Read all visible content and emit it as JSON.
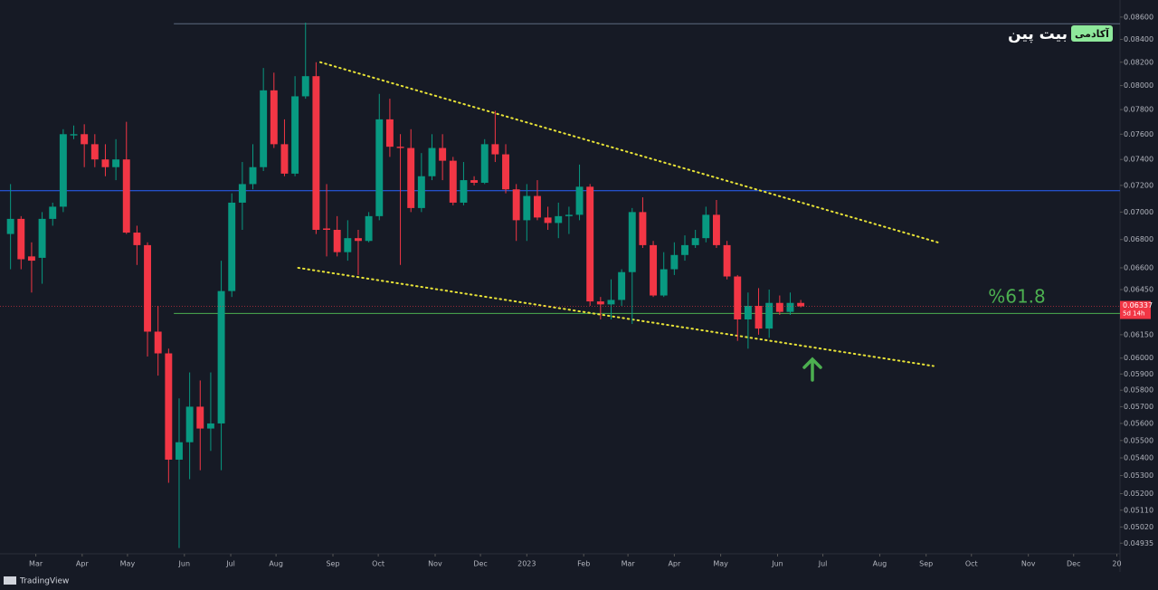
{
  "chart_data": {
    "type": "candlestick",
    "up_color": "#089981",
    "down_color": "#f23645",
    "open": [
      0.0684,
      0.0695,
      0.0668,
      0.0667,
      0.0695,
      0.0704,
      0.0759,
      0.076,
      0.0752,
      0.074,
      0.0734,
      0.074,
      0.0685,
      0.0676,
      0.0617,
      0.0603,
      0.0539,
      0.0549,
      0.057,
      0.0557,
      0.056,
      0.0644,
      0.0707,
      0.0721,
      0.0734,
      0.0796,
      0.0752,
      0.0729,
      0.0791,
      0.0808,
      0.0688,
      0.0687,
      0.0671,
      0.0681,
      0.0679,
      0.0697,
      0.0772,
      0.075,
      0.0749,
      0.0703,
      0.0727,
      0.0749,
      0.0739,
      0.0707,
      0.0724,
      0.0722,
      0.0752,
      0.0744,
      0.0717,
      0.0694,
      0.0712,
      0.0696,
      0.0692,
      0.0697,
      0.0698,
      0.0719,
      0.0637,
      0.0635,
      0.0638,
      0.0657,
      0.07,
      0.0676,
      0.0641,
      0.0659,
      0.0669,
      0.0676,
      0.0681,
      0.0698,
      0.0676,
      0.0654,
      0.0625,
      0.0634,
      0.0619,
      0.0636,
      0.063,
      0.0636
    ],
    "high": [
      0.0721,
      0.0697,
      0.0678,
      0.07,
      0.0707,
      0.0764,
      0.0767,
      0.0768,
      0.076,
      0.0752,
      0.0756,
      0.077,
      0.069,
      0.0678,
      0.0634,
      0.0606,
      0.0575,
      0.0591,
      0.0586,
      0.0591,
      0.0665,
      0.0714,
      0.0738,
      0.0752,
      0.0815,
      0.0811,
      0.0772,
      0.0808,
      0.0855,
      0.082,
      0.0721,
      0.0697,
      0.0694,
      0.0687,
      0.07,
      0.0793,
      0.0789,
      0.076,
      0.0764,
      0.0745,
      0.076,
      0.076,
      0.0742,
      0.0738,
      0.0727,
      0.0756,
      0.0779,
      0.0752,
      0.0721,
      0.0721,
      0.0724,
      0.0704,
      0.0707,
      0.0704,
      0.0736,
      0.0721,
      0.064,
      0.0652,
      0.0659,
      0.0703,
      0.0711,
      0.0679,
      0.0671,
      0.0678,
      0.0683,
      0.0687,
      0.0704,
      0.0709,
      0.0679,
      0.0655,
      0.0643,
      0.0646,
      0.0645,
      0.0641,
      0.0643,
      0.0638
    ],
    "low": [
      0.0659,
      0.0659,
      0.0643,
      0.0649,
      0.069,
      0.07,
      0.0756,
      0.0734,
      0.0734,
      0.0727,
      0.0724,
      0.0684,
      0.0662,
      0.0601,
      0.0589,
      0.0526,
      0.0491,
      0.0528,
      0.0533,
      0.0544,
      0.0533,
      0.064,
      0.0687,
      0.0717,
      0.0731,
      0.0749,
      0.0727,
      0.0727,
      0.0789,
      0.0684,
      0.0668,
      0.0668,
      0.0665,
      0.0655,
      0.0678,
      0.0694,
      0.0742,
      0.0662,
      0.07,
      0.07,
      0.0724,
      0.0724,
      0.0705,
      0.0705,
      0.072,
      0.0721,
      0.0738,
      0.0714,
      0.0679,
      0.0679,
      0.0694,
      0.0687,
      0.0681,
      0.0684,
      0.0694,
      0.0634,
      0.0625,
      0.0625,
      0.0634,
      0.0622,
      0.0674,
      0.064,
      0.064,
      0.0655,
      0.0665,
      0.0674,
      0.0678,
      0.0674,
      0.0652,
      0.0611,
      0.0606,
      0.0615,
      0.0613,
      0.0628,
      0.0628,
      0.0633
    ],
    "close": [
      0.0695,
      0.0666,
      0.0665,
      0.0695,
      0.0704,
      0.076,
      0.076,
      0.0752,
      0.074,
      0.0734,
      0.074,
      0.0685,
      0.0676,
      0.0617,
      0.0603,
      0.0539,
      0.0549,
      0.057,
      0.0557,
      0.056,
      0.0644,
      0.0707,
      0.0721,
      0.0734,
      0.0796,
      0.0752,
      0.0729,
      0.0791,
      0.0808,
      0.0687,
      0.0687,
      0.0671,
      0.0681,
      0.0679,
      0.0697,
      0.0772,
      0.075,
      0.0749,
      0.0703,
      0.0727,
      0.0749,
      0.0739,
      0.0707,
      0.0724,
      0.0722,
      0.0752,
      0.0744,
      0.0717,
      0.0694,
      0.0712,
      0.0696,
      0.0692,
      0.0697,
      0.0698,
      0.0719,
      0.0637,
      0.0635,
      0.0638,
      0.0657,
      0.07,
      0.0676,
      0.0641,
      0.0659,
      0.0669,
      0.0676,
      0.0681,
      0.0698,
      0.0676,
      0.0654,
      0.0625,
      0.0634,
      0.0619,
      0.0636,
      0.063,
      0.0636,
      0.06337
    ],
    "last_label": "0.06337",
    "countdown": "5d 14h",
    "log_scale": true,
    "ylim": [
      0.0488,
      0.0869
    ],
    "yticks": [
      {
        "value": 0.086,
        "label": "0.08600"
      },
      {
        "value": 0.084,
        "label": "0.08400"
      },
      {
        "value": 0.082,
        "label": "0.08200"
      },
      {
        "value": 0.08,
        "label": "0.08000"
      },
      {
        "value": 0.078,
        "label": "0.07800"
      },
      {
        "value": 0.076,
        "label": "0.07600"
      },
      {
        "value": 0.074,
        "label": "0.07400"
      },
      {
        "value": 0.072,
        "label": "0.07200"
      },
      {
        "value": 0.07,
        "label": "0.07000"
      },
      {
        "value": 0.068,
        "label": "0.06800"
      },
      {
        "value": 0.066,
        "label": "0.06600"
      },
      {
        "value": 0.0645,
        "label": "0.06450"
      },
      {
        "value": 0.0615,
        "label": "0.06150"
      },
      {
        "value": 0.06,
        "label": "0.06000"
      },
      {
        "value": 0.059,
        "label": "0.05900"
      },
      {
        "value": 0.058,
        "label": "0.05800"
      },
      {
        "value": 0.057,
        "label": "0.05700"
      },
      {
        "value": 0.056,
        "label": "0.05600"
      },
      {
        "value": 0.055,
        "label": "0.05500"
      },
      {
        "value": 0.054,
        "label": "0.05400"
      },
      {
        "value": 0.053,
        "label": "0.05300"
      },
      {
        "value": 0.052,
        "label": "0.05200"
      },
      {
        "value": 0.0511,
        "label": "0.05110"
      },
      {
        "value": 0.0502,
        "label": "0.05020"
      },
      {
        "value": 0.04935,
        "label": "0.04935"
      }
    ],
    "xlim": [
      -1,
      105.3
    ],
    "xticks": [
      {
        "value": 2.4,
        "label": "Mar"
      },
      {
        "value": 6.8,
        "label": "Apr"
      },
      {
        "value": 11.1,
        "label": "May"
      },
      {
        "value": 16.5,
        "label": "Jun"
      },
      {
        "value": 20.9,
        "label": "Jul"
      },
      {
        "value": 25.2,
        "label": "Aug"
      },
      {
        "value": 30.6,
        "label": "Sep"
      },
      {
        "value": 34.9,
        "label": "Oct"
      },
      {
        "value": 40.3,
        "label": "Nov"
      },
      {
        "value": 44.6,
        "label": "Dec"
      },
      {
        "value": 49.0,
        "label": "2023"
      },
      {
        "value": 54.4,
        "label": "Feb"
      },
      {
        "value": 58.6,
        "label": "Mar"
      },
      {
        "value": 63.0,
        "label": "Apr"
      },
      {
        "value": 67.4,
        "label": "May"
      },
      {
        "value": 72.8,
        "label": "Jun"
      },
      {
        "value": 77.1,
        "label": "Jul"
      },
      {
        "value": 82.5,
        "label": "Aug"
      },
      {
        "value": 86.9,
        "label": "Sep"
      },
      {
        "value": 91.2,
        "label": "Oct"
      },
      {
        "value": 96.6,
        "label": "Nov"
      },
      {
        "value": 100.9,
        "label": "Dec"
      },
      {
        "value": 105.0,
        "label": "20"
      }
    ],
    "levels": [
      {
        "value": 0.0854,
        "x0": 15.5,
        "color": "#5d6b80"
      },
      {
        "value": 0.0716,
        "x0": -1,
        "color": "#2962ff"
      },
      {
        "value": 0.0629,
        "x0": 15.5,
        "color": "#4caf50"
      }
    ],
    "trendlines": [
      {
        "x": [
          29.4,
          88.0
        ],
        "y": [
          0.082,
          0.0678
        ],
        "color": "#e8e337"
      },
      {
        "x": [
          27.3,
          87.6
        ],
        "y": [
          0.066,
          0.0595
        ],
        "color": "#e8e337"
      }
    ],
    "annotation": "%61.8",
    "logo": {
      "name": "بیت پین",
      "badge": "آکادمی"
    },
    "footer": "TradingView"
  }
}
